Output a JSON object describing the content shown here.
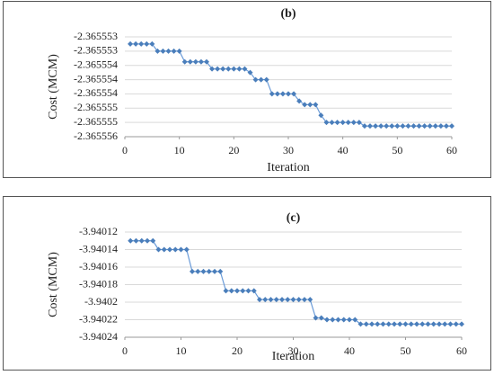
{
  "chart_data": [
    {
      "type": "line",
      "title": "(b)",
      "x_label": "Iteration",
      "y_label": "Cost (MCM)",
      "xlim": [
        0,
        60
      ],
      "xticks": [
        0,
        10,
        20,
        30,
        40,
        50,
        60
      ],
      "ylim": [
        -2.3655556,
        -2.3655528
      ],
      "yticks": [
        {
          "value": -2.3655528,
          "label": "-2.365553"
        },
        {
          "value": -2.3655532,
          "label": "-2.365553"
        },
        {
          "value": -2.3655536,
          "label": "-2.365554"
        },
        {
          "value": -2.365554,
          "label": "-2.365554"
        },
        {
          "value": -2.3655544,
          "label": "-2.365554"
        },
        {
          "value": -2.3655548,
          "label": "-2.365555"
        },
        {
          "value": -2.3655552,
          "label": "-2.365555"
        },
        {
          "value": -2.3655556,
          "label": "-2.365556"
        }
      ],
      "grid": true,
      "color": "#4a7ebb",
      "x": [
        1,
        2,
        3,
        4,
        5,
        6,
        7,
        8,
        9,
        10,
        11,
        12,
        13,
        14,
        15,
        16,
        17,
        18,
        19,
        20,
        21,
        22,
        23,
        24,
        25,
        26,
        27,
        28,
        29,
        30,
        31,
        32,
        33,
        34,
        35,
        36,
        37,
        38,
        39,
        40,
        41,
        42,
        43,
        44,
        45,
        46,
        47,
        48,
        49,
        50,
        51,
        52,
        53,
        54,
        55,
        56,
        57,
        58,
        59,
        60
      ],
      "values": [
        -2.365553,
        -2.365553,
        -2.365553,
        -2.365553,
        -2.365553,
        -2.3655532,
        -2.3655532,
        -2.3655532,
        -2.3655532,
        -2.3655532,
        -2.3655535,
        -2.3655535,
        -2.3655535,
        -2.3655535,
        -2.3655535,
        -2.3655537,
        -2.3655537,
        -2.3655537,
        -2.3655537,
        -2.3655537,
        -2.3655537,
        -2.3655537,
        -2.3655538,
        -2.365554,
        -2.365554,
        -2.365554,
        -2.3655544,
        -2.3655544,
        -2.3655544,
        -2.3655544,
        -2.3655544,
        -2.3655546,
        -2.3655547,
        -2.3655547,
        -2.3655547,
        -2.365555,
        -2.3655552,
        -2.3655552,
        -2.3655552,
        -2.3655552,
        -2.3655552,
        -2.3655552,
        -2.3655552,
        -2.3655553,
        -2.3655553,
        -2.3655553,
        -2.3655553,
        -2.3655553,
        -2.3655553,
        -2.3655553,
        -2.3655553,
        -2.3655553,
        -2.3655553,
        -2.3655553,
        -2.3655553,
        -2.3655553,
        -2.3655553,
        -2.3655553,
        -2.3655553,
        -2.3655553
      ]
    },
    {
      "type": "line",
      "title": "(c)",
      "x_label": "Iteration",
      "y_label": "Cost (MCM)",
      "xlim": [
        0,
        60
      ],
      "xticks": [
        0,
        10,
        20,
        30,
        40,
        50,
        60
      ],
      "ylim": [
        -3.94024,
        -3.94012
      ],
      "yticks": [
        -3.94012,
        -3.94014,
        -3.94016,
        -3.94018,
        -3.9402,
        -3.94022,
        -3.94024
      ],
      "grid": true,
      "color": "#4a7ebb",
      "x": [
        1,
        2,
        3,
        4,
        5,
        6,
        7,
        8,
        9,
        10,
        11,
        12,
        13,
        14,
        15,
        16,
        17,
        18,
        19,
        20,
        21,
        22,
        23,
        24,
        25,
        26,
        27,
        28,
        29,
        30,
        31,
        32,
        33,
        34,
        35,
        36,
        37,
        38,
        39,
        40,
        41,
        42,
        43,
        44,
        45,
        46,
        47,
        48,
        49,
        50,
        51,
        52,
        53,
        54,
        55,
        56,
        57,
        58,
        59,
        60
      ],
      "values": [
        -3.94013,
        -3.94013,
        -3.94013,
        -3.94013,
        -3.94013,
        -3.94014,
        -3.94014,
        -3.94014,
        -3.94014,
        -3.94014,
        -3.94014,
        -3.940165,
        -3.940165,
        -3.940165,
        -3.940165,
        -3.940165,
        -3.940165,
        -3.940187,
        -3.940187,
        -3.940187,
        -3.940187,
        -3.940187,
        -3.940187,
        -3.940197,
        -3.940197,
        -3.940197,
        -3.940197,
        -3.940197,
        -3.940197,
        -3.940197,
        -3.940197,
        -3.940197,
        -3.940197,
        -3.940218,
        -3.940218,
        -3.94022,
        -3.94022,
        -3.94022,
        -3.94022,
        -3.94022,
        -3.94022,
        -3.940225,
        -3.940225,
        -3.940225,
        -3.940225,
        -3.940225,
        -3.940225,
        -3.940225,
        -3.940225,
        -3.940225,
        -3.940225,
        -3.940225,
        -3.940225,
        -3.940225,
        -3.940225,
        -3.940225,
        -3.940225,
        -3.940225,
        -3.940225,
        -3.940225
      ]
    }
  ]
}
